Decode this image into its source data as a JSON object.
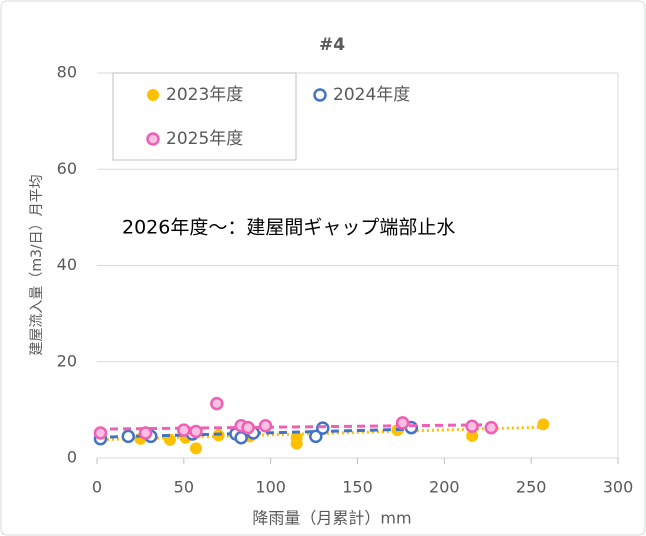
{
  "chart_data": {
    "type": "scatter",
    "title": "#4",
    "xlabel": "降雨量（月累計）mm",
    "ylabel": "建屋流入量（m3/日）月平均",
    "annotation": "2026年度～：建屋間ギャップ端部止水",
    "xlim": [
      0,
      300
    ],
    "xticks": [
      0,
      50,
      100,
      150,
      200,
      250,
      300
    ],
    "ylim": [
      0,
      80
    ],
    "yticks": [
      0,
      20,
      40,
      60,
      80
    ],
    "grid": true,
    "legend": "top-left",
    "series": [
      {
        "name": "2023年度",
        "color": "#ffc000",
        "marker": "filled",
        "trend_style": "dotted",
        "x": [
          25,
          42,
          51,
          57,
          70,
          88,
          115,
          115,
          173,
          216,
          257
        ],
        "values": [
          4,
          3.8,
          4.2,
          2,
          4.7,
          4.5,
          4.2,
          3,
          5.8,
          4.6,
          7
        ],
        "trend_x": [
          0,
          257
        ],
        "trend_y": [
          3.8,
          6.4
        ]
      },
      {
        "name": "2024年度",
        "color": "#4472c4",
        "marker": "open",
        "trend_style": "dashed",
        "x": [
          2,
          18,
          31,
          55,
          80,
          83,
          90,
          126,
          130,
          181
        ],
        "values": [
          4,
          4.5,
          4.5,
          5,
          5,
          4.2,
          5.2,
          4.5,
          6.2,
          6.3
        ],
        "trend_x": [
          0,
          181
        ],
        "trend_y": [
          4.3,
          6.0
        ]
      },
      {
        "name": "2025年度",
        "color": "#ee5fb5",
        "marker": "pink",
        "trend_style": "dashed",
        "x": [
          2,
          28,
          50,
          57,
          69,
          83,
          87,
          97,
          176,
          216,
          227
        ],
        "values": [
          5.2,
          5.2,
          5.8,
          5.5,
          11.3,
          6.7,
          6.3,
          6.7,
          7.3,
          6.6,
          6.3
        ],
        "trend_x": [
          0,
          227
        ],
        "trend_y": [
          6.0,
          6.9
        ]
      }
    ]
  }
}
